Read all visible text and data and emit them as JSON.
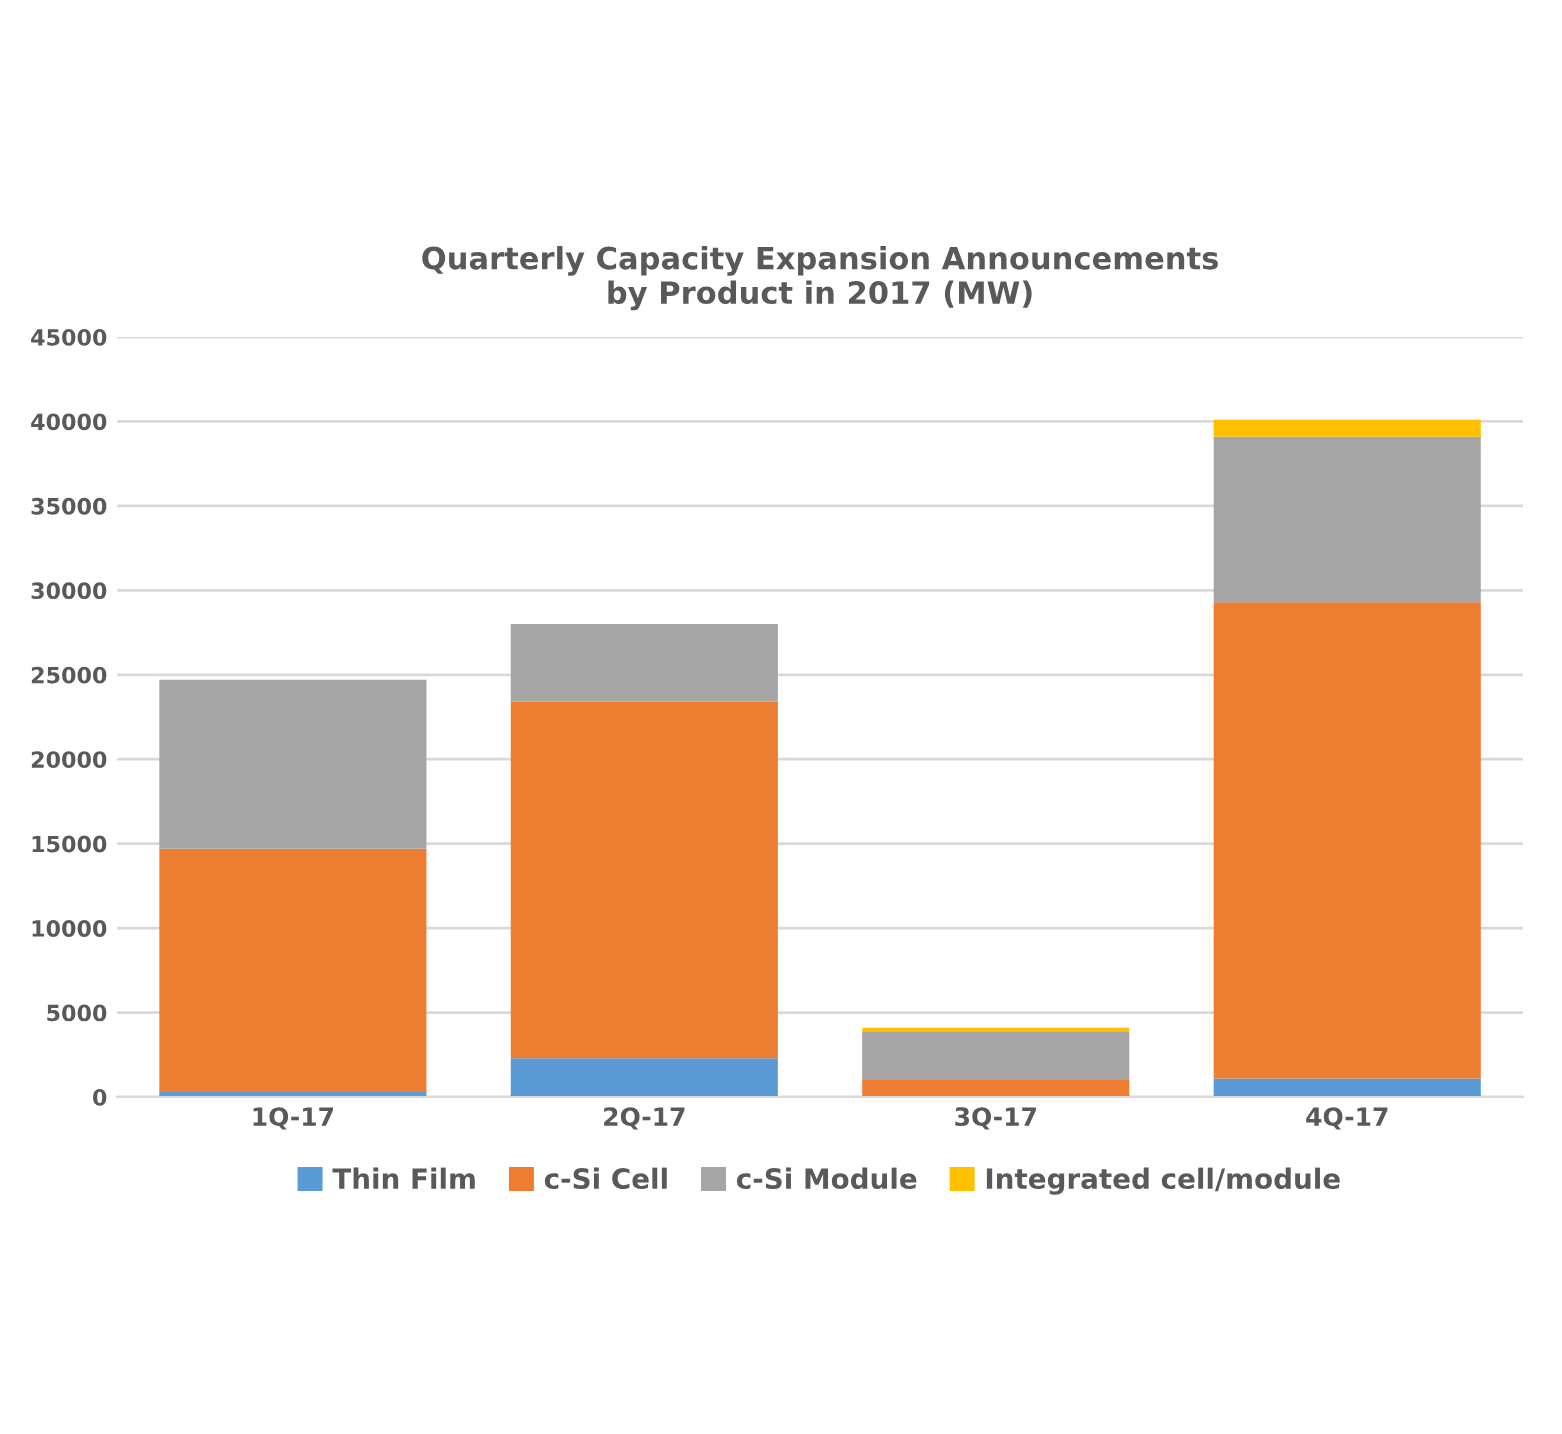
{
  "chart_data": {
    "type": "bar",
    "title": "Quarterly Capacity Expansion Announcements\nby Product in 2017 (MW)",
    "categories": [
      "1Q-17",
      "2Q-17",
      "3Q-17",
      "4Q-17"
    ],
    "stacked": true,
    "series": [
      {
        "name": "Thin Film",
        "color": "#5b9bd5",
        "values": [
          300,
          2300,
          0,
          1100
        ]
      },
      {
        "name": "c-Si Cell",
        "color": "#ed7d31",
        "values": [
          14400,
          21100,
          1000,
          28200
        ]
      },
      {
        "name": "c-Si Module",
        "color": "#a5a5a5",
        "values": [
          10000,
          4600,
          2900,
          9800
        ]
      },
      {
        "name": "Integrated cell/module",
        "color": "#ffc000",
        "values": [
          0,
          0,
          200,
          1000
        ]
      }
    ],
    "ylim": [
      0,
      45000
    ],
    "yticks": [
      0,
      5000,
      10000,
      15000,
      20000,
      25000,
      30000,
      35000,
      40000,
      45000
    ],
    "grid": "y",
    "legend": "bottom"
  }
}
